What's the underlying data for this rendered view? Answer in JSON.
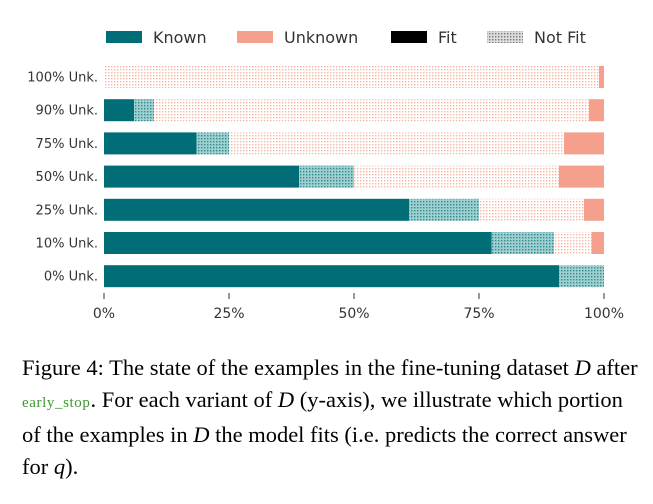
{
  "chart_data": {
    "type": "bar",
    "orientation": "horizontal",
    "stacked": true,
    "categories": [
      "100% Unk.",
      "90% Unk.",
      "75% Unk.",
      "50% Unk.",
      "25% Unk.",
      "10% Unk.",
      "0% Unk."
    ],
    "series": [
      {
        "name": "Known",
        "fit": "Fit",
        "values": [
          0.0,
          6.0,
          18.5,
          39.0,
          61.0,
          77.5,
          91.0
        ],
        "color": "#006d77"
      },
      {
        "name": "Known",
        "fit": "Not Fit",
        "values": [
          0.0,
          4.0,
          6.5,
          11.0,
          14.0,
          12.5,
          9.0
        ],
        "color": "#006d77"
      },
      {
        "name": "Unknown",
        "fit": "Not Fit",
        "values": [
          99.0,
          87.0,
          67.0,
          41.0,
          21.0,
          7.5,
          0.0
        ],
        "color": "#f4a08c"
      },
      {
        "name": "Unknown",
        "fit": "Fit",
        "values": [
          1.0,
          3.0,
          8.0,
          9.0,
          4.0,
          2.5,
          0.0
        ],
        "color": "#f4a08c"
      }
    ],
    "xlim": [
      0,
      100
    ],
    "xticks": [
      "0%",
      "25%",
      "50%",
      "75%",
      "100%"
    ],
    "legend": {
      "placement": "top",
      "entries": [
        {
          "label": "Known",
          "style": "solid",
          "color": "#006d77"
        },
        {
          "label": "Unknown",
          "style": "solid",
          "color": "#f4a08c"
        },
        {
          "label": "Fit",
          "style": "solid",
          "color": "#000000"
        },
        {
          "label": "Not Fit",
          "style": "hatched",
          "color": "#888888"
        }
      ]
    },
    "grid": false
  },
  "caption": {
    "label": "Figure 4:",
    "part1": " The state of the examples in the fine-tuning dataset ",
    "var_d1": "D",
    "part2": " after ",
    "smallcaps": "early_stop",
    "part3": ". For each variant of ",
    "var_d2": "D",
    "part4": " (y-axis), we illustrate which portion of the examples in ",
    "var_d3": "D",
    "part5": " the model fits (i.e. predicts the correct answer for ",
    "var_q": "q",
    "part6": ")."
  }
}
